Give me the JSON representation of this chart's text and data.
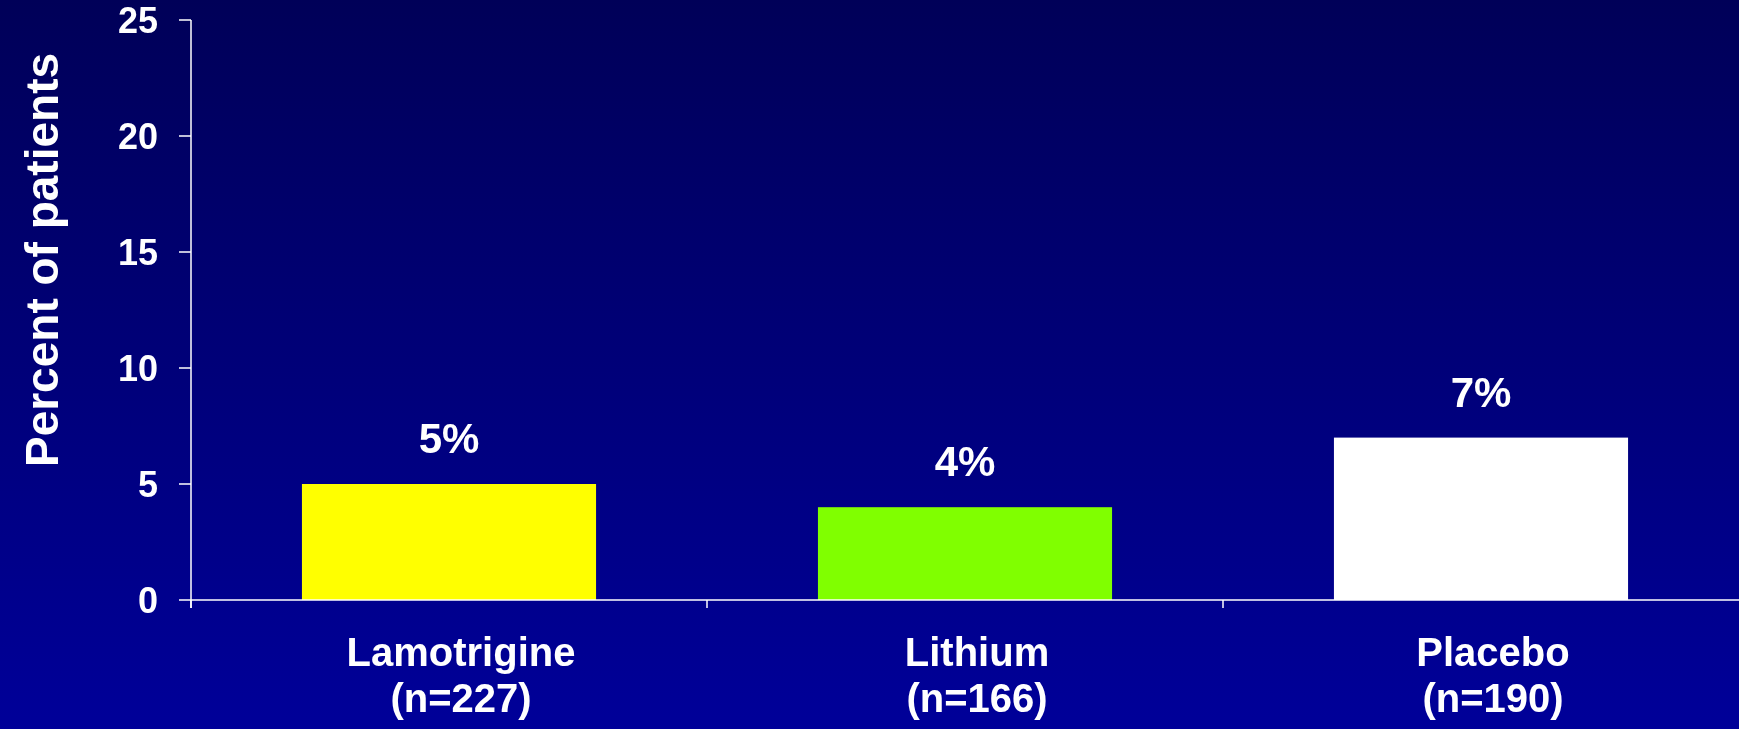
{
  "chart_data": {
    "type": "bar",
    "ylabel": "Percent of patients",
    "categories": [
      "Lamotrigine\n(n=227)",
      "Lithium\n(n=166)",
      "Placebo\n(n=190)"
    ],
    "values": [
      5,
      4,
      7
    ],
    "colors": [
      "#ffff00",
      "#80ff00",
      "#ffffff"
    ],
    "value_labels": [
      "5%",
      "4%",
      "7%"
    ],
    "ylim": [
      0,
      25
    ],
    "yticks": [
      0,
      5,
      10,
      15,
      20,
      25
    ],
    "grid": false
  }
}
